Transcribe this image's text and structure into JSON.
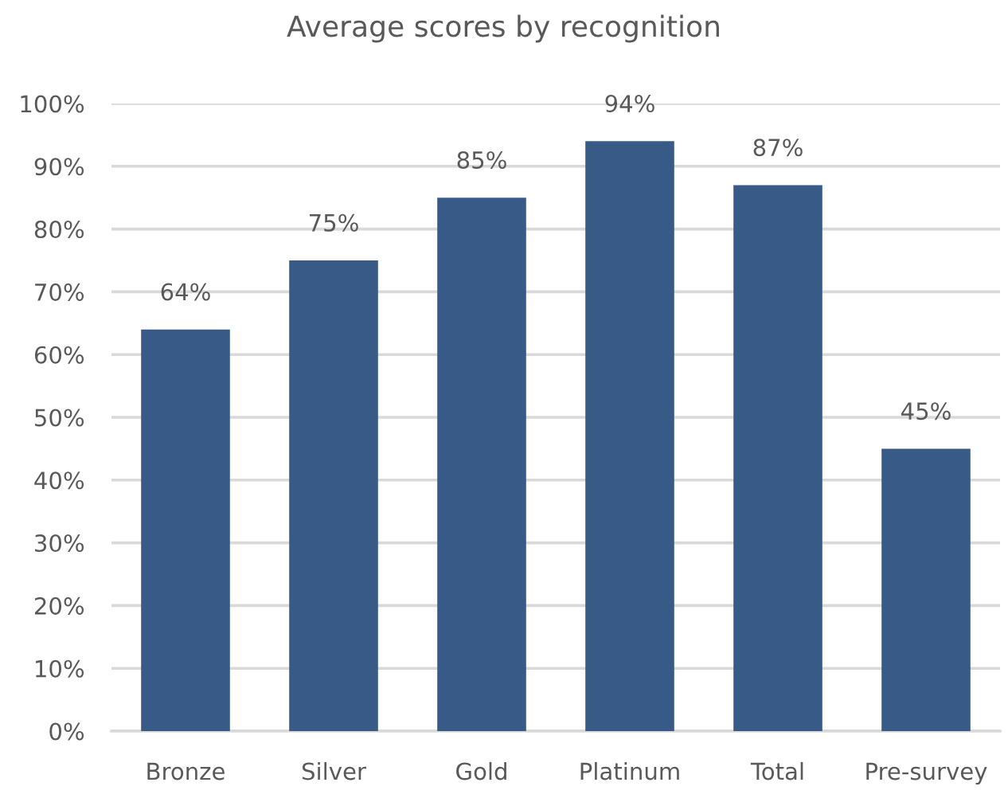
{
  "chart_data": {
    "type": "bar",
    "title": "Average scores by recognition",
    "categories": [
      "Bronze",
      "Silver",
      "Gold",
      "Platinum",
      "Total",
      "Pre-survey"
    ],
    "values": [
      64,
      75,
      85,
      94,
      87,
      45
    ],
    "value_labels": [
      "64%",
      "75%",
      "85%",
      "94%",
      "87%",
      "45%"
    ],
    "color": "#375a87",
    "ylim": [
      0,
      100
    ],
    "yticks": [
      {
        "value": 0,
        "label": "0%"
      },
      {
        "value": 10,
        "label": "10%"
      },
      {
        "value": 20,
        "label": "20%"
      },
      {
        "value": 30,
        "label": "30%"
      },
      {
        "value": 40,
        "label": "40%"
      },
      {
        "value": 50,
        "label": "50%"
      },
      {
        "value": 60,
        "label": "60%"
      },
      {
        "value": 70,
        "label": "70%"
      },
      {
        "value": 80,
        "label": "80%"
      },
      {
        "value": 90,
        "label": "90%"
      },
      {
        "value": 100,
        "label": "100%"
      }
    ],
    "grid": "y"
  }
}
